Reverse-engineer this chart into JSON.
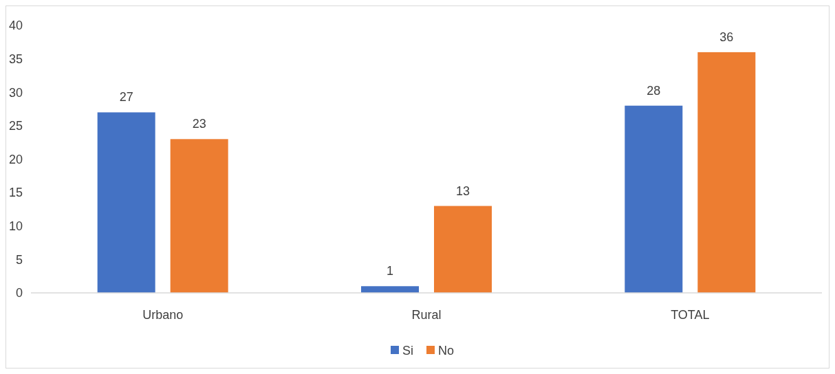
{
  "chart_data": {
    "type": "bar",
    "categories": [
      "Urbano",
      "Rural",
      "TOTAL"
    ],
    "series": [
      {
        "name": "Si",
        "color": "#4472c4",
        "values": [
          27,
          1,
          28
        ]
      },
      {
        "name": "No",
        "color": "#ed7d31",
        "values": [
          23,
          13,
          36
        ]
      }
    ],
    "ylim": [
      0,
      40
    ],
    "yticks": [
      0,
      5,
      10,
      15,
      20,
      25,
      30,
      35,
      40
    ],
    "data_labels": true,
    "legend": "bottom",
    "grid": false
  }
}
